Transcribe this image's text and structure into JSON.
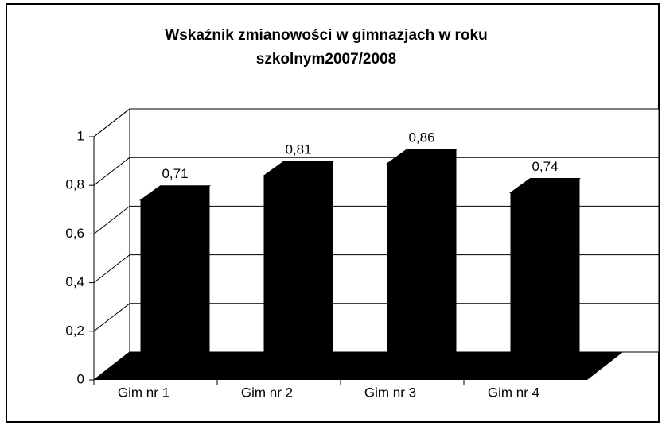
{
  "chart_data": {
    "type": "bar3d",
    "title": "Wskaźnik zmianowości w gimnazjach w roku szkolnym2007/2008",
    "categories": [
      "Gim nr 1",
      "Gim nr 2",
      "Gim nr 3",
      "Gim nr 4"
    ],
    "values": [
      0.71,
      0.81,
      0.86,
      0.74
    ],
    "value_labels": [
      "0,71",
      "0,81",
      "0,86",
      "0,74"
    ],
    "color": "#000000",
    "ylim": [
      0,
      1
    ],
    "yticks": [
      0,
      {
        "value": 0.2,
        "label": "0,2"
      },
      {
        "value": 0.4,
        "label": "0,4"
      },
      {
        "value": 0.6,
        "label": "0,6"
      },
      {
        "value": 0.8,
        "label": "0,8"
      },
      1
    ],
    "grid": true
  }
}
